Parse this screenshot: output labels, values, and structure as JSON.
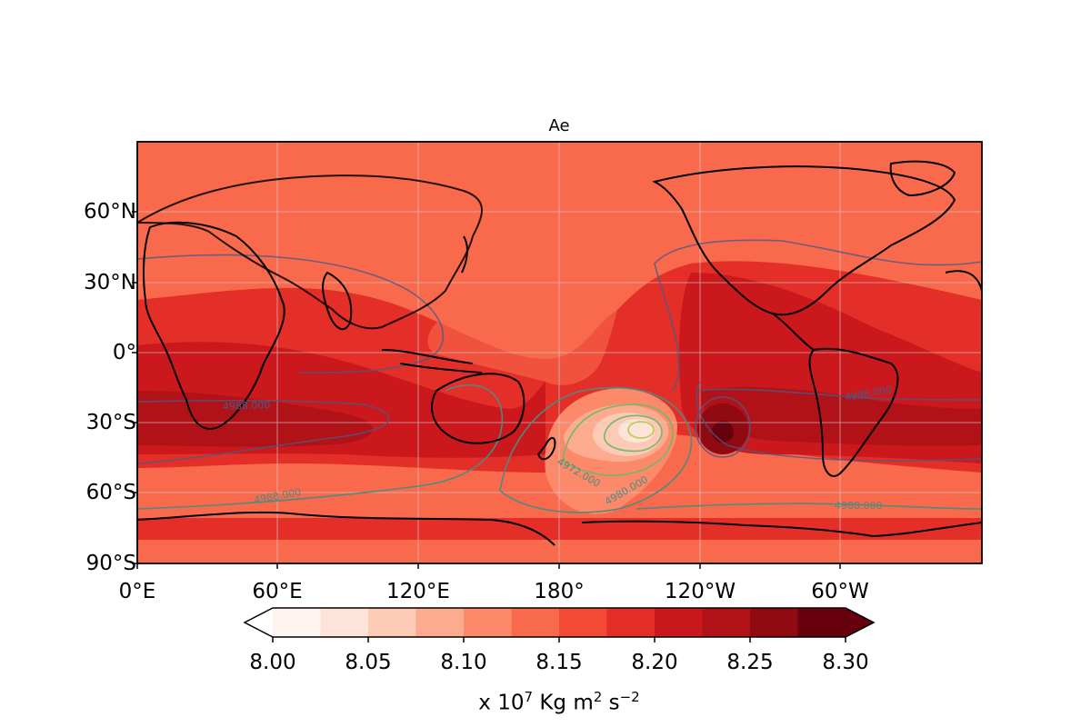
{
  "title": "Ae",
  "map": {
    "projection": "PlateCarree",
    "central_longitude": 180,
    "land_overlay": "coastlines and country borders",
    "grid": true,
    "lat_ticks": [
      "60°N",
      "30°N",
      "0°",
      "30°S",
      "60°S",
      "90°S"
    ],
    "lon_ticks": [
      "0°E",
      "60°E",
      "120°E",
      "180°",
      "120°W",
      "60°W"
    ],
    "colormap": "Reds",
    "fill_colors": [
      "#fff5f0",
      "#fee4d8",
      "#fdcab5",
      "#fcab8f",
      "#fc8a6a",
      "#f96a4d",
      "#f24a35",
      "#e32f27",
      "#ca181d",
      "#b11218",
      "#900a12",
      "#67000d"
    ],
    "contour_colors": [
      "#4a5a87",
      "#4f8a7e",
      "#6fb86a",
      "#b8c94a"
    ],
    "contour_labels": [
      "4988.000",
      "4988.000",
      "4988.000",
      "4988.000",
      "4972.000",
      "4980.000"
    ]
  },
  "colorbar": {
    "ticks": [
      "8.00",
      "8.05",
      "8.10",
      "8.15",
      "8.20",
      "8.25",
      "8.30"
    ],
    "min": 8.0,
    "max": 8.3,
    "extend": "both",
    "label_prefix": "x 10",
    "label_exp1": "7",
    "label_mid": " Kg m",
    "label_exp2": "2",
    "label_mid2": " s",
    "label_exp3": "−2"
  }
}
